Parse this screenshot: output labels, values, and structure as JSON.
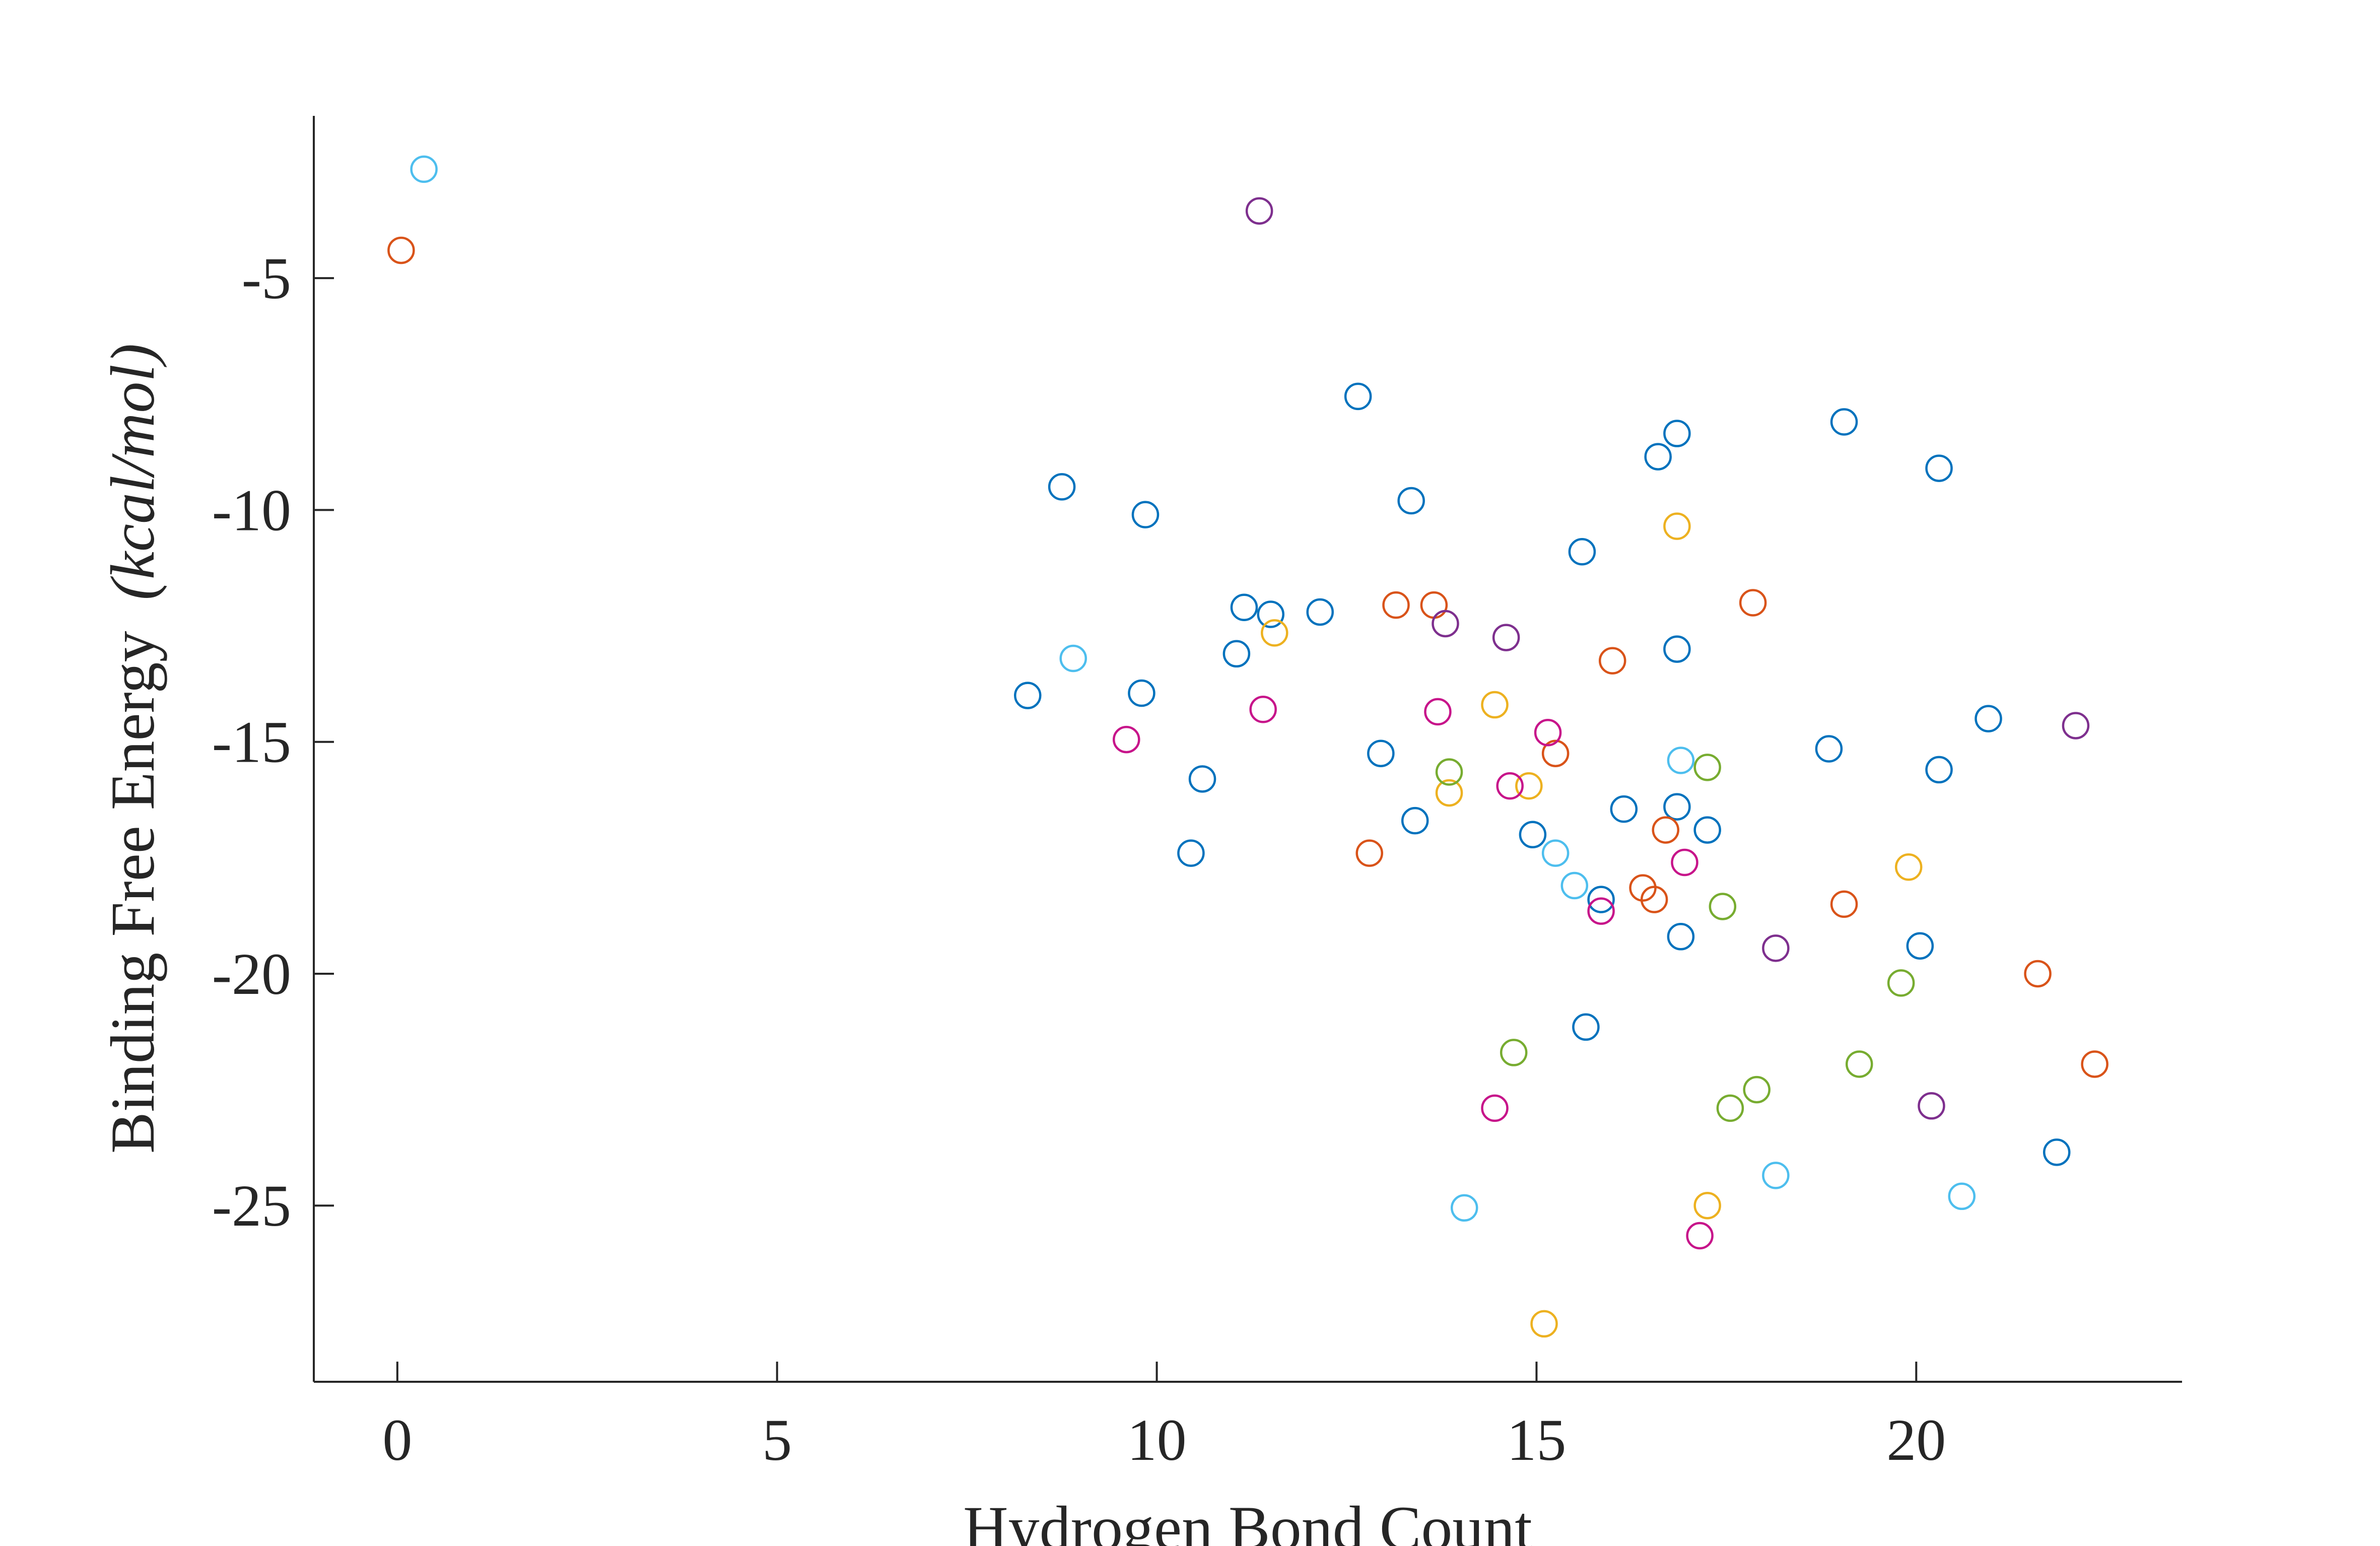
{
  "chart_data": {
    "type": "scatter",
    "xlabel": "Hydrogen Bond Count",
    "ylabel_main": "Binding  Free  Energy",
    "ylabel_unit": "(kcal/mol)",
    "xlim": [
      -1.1,
      23.5
    ],
    "ylim": [
      -28.8,
      -1.5
    ],
    "xticks": [
      0,
      5,
      10,
      15,
      20
    ],
    "yticks": [
      -25,
      -20,
      -15,
      -10,
      -5
    ],
    "xtick_labels": [
      "0",
      "5",
      "10",
      "15",
      "20"
    ],
    "ytick_labels": [
      "-25",
      "-20",
      "-15",
      "-10",
      "-5"
    ],
    "grid": false,
    "colors": {
      "blue": "#0072BD",
      "orange": "#D95319",
      "yellow": "#EDB120",
      "purple": "#7E2F8E",
      "green": "#77AC30",
      "cyan": "#4DBEEE",
      "magenta": "#C7148A",
      "axis": "#262626"
    },
    "series": [
      {
        "color": "#0072BD",
        "points": [
          [
            8.3,
            -14.0
          ],
          [
            8.75,
            -9.5
          ],
          [
            9.8,
            -13.95
          ],
          [
            9.85,
            -10.1
          ],
          [
            10.45,
            -17.4
          ],
          [
            10.6,
            -15.8
          ],
          [
            11.05,
            -13.1
          ],
          [
            11.15,
            -12.1
          ],
          [
            11.5,
            -12.25
          ],
          [
            12.15,
            -12.2
          ],
          [
            12.65,
            -7.55
          ],
          [
            12.95,
            -15.25
          ],
          [
            13.35,
            -9.8
          ],
          [
            13.4,
            -16.7
          ],
          [
            14.95,
            -17.0
          ],
          [
            15.6,
            -10.9
          ],
          [
            15.65,
            -21.15
          ],
          [
            15.85,
            -18.4
          ],
          [
            16.15,
            -16.45
          ],
          [
            16.6,
            -8.85
          ],
          [
            16.85,
            -8.35
          ],
          [
            16.85,
            -13.0
          ],
          [
            16.85,
            -16.4
          ],
          [
            16.9,
            -19.2
          ],
          [
            17.25,
            -16.9
          ],
          [
            18.85,
            -15.15
          ],
          [
            19.05,
            -8.1
          ],
          [
            20.05,
            -19.4
          ],
          [
            20.3,
            -9.1
          ],
          [
            20.3,
            -15.6
          ],
          [
            20.95,
            -14.5
          ],
          [
            21.85,
            -23.85
          ]
        ]
      },
      {
        "color": "#D95319",
        "points": [
          [
            0.05,
            -4.4
          ],
          [
            12.8,
            -17.4
          ],
          [
            13.15,
            -12.05
          ],
          [
            13.65,
            -12.05
          ],
          [
            15.25,
            -15.25
          ],
          [
            16.0,
            -13.25
          ],
          [
            16.4,
            -18.15
          ],
          [
            16.55,
            -18.4
          ],
          [
            16.7,
            -16.9
          ],
          [
            17.85,
            -12.0
          ],
          [
            19.05,
            -18.5
          ],
          [
            21.6,
            -20.0
          ],
          [
            22.35,
            -21.95
          ]
        ]
      },
      {
        "color": "#EDB120",
        "points": [
          [
            11.55,
            -12.65
          ],
          [
            13.85,
            -16.1
          ],
          [
            14.45,
            -14.2
          ],
          [
            14.9,
            -15.95
          ],
          [
            15.1,
            -27.55
          ],
          [
            16.85,
            -10.35
          ],
          [
            17.25,
            -25.0
          ],
          [
            19.9,
            -17.7
          ]
        ]
      },
      {
        "color": "#7E2F8E",
        "points": [
          [
            11.35,
            -3.55
          ],
          [
            13.8,
            -12.45
          ],
          [
            14.6,
            -12.75
          ],
          [
            18.15,
            -19.45
          ],
          [
            22.1,
            -14.65
          ],
          [
            20.2,
            -22.85
          ]
        ]
      },
      {
        "color": "#77AC30",
        "points": [
          [
            13.85,
            -15.65
          ],
          [
            14.7,
            -21.7
          ],
          [
            17.25,
            -15.55
          ],
          [
            17.45,
            -18.55
          ],
          [
            17.55,
            -22.9
          ],
          [
            17.9,
            -22.5
          ],
          [
            19.25,
            -21.95
          ],
          [
            19.8,
            -20.2
          ]
        ]
      },
      {
        "color": "#4DBEEE",
        "points": [
          [
            0.35,
            -2.65
          ],
          [
            8.9,
            -13.2
          ],
          [
            14.05,
            -25.05
          ],
          [
            15.25,
            -17.4
          ],
          [
            15.5,
            -18.1
          ],
          [
            16.9,
            -15.4
          ],
          [
            18.15,
            -24.35
          ],
          [
            20.6,
            -24.8
          ]
        ]
      },
      {
        "color": "#C7148A",
        "points": [
          [
            9.6,
            -14.95
          ],
          [
            11.4,
            -14.3
          ],
          [
            13.7,
            -14.35
          ],
          [
            14.45,
            -22.9
          ],
          [
            14.65,
            -15.95
          ],
          [
            15.15,
            -14.8
          ],
          [
            15.85,
            -18.65
          ],
          [
            16.95,
            -17.6
          ],
          [
            17.15,
            -25.65
          ]
        ]
      }
    ]
  }
}
